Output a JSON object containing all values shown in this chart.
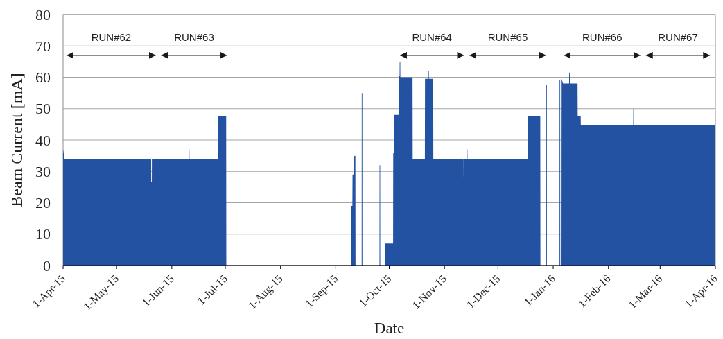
{
  "chart_data": {
    "type": "area",
    "xlabel": "Date",
    "ylabel": "Beam Current [mA]",
    "series": [
      {
        "color": "#2452a3",
        "x": [
          "2015-04-01",
          "2015-04-01T20:00",
          "2015-05-20T10:00",
          "2015-05-20T11:00",
          "2015-05-20T19:00",
          "2015-05-20T20:00",
          "2015-06-10T12:00",
          "2015-06-10T13:00",
          "2015-06-10T21:00",
          "2015-06-10T22:00",
          "2015-06-26T18:00",
          "2015-06-26T20:00",
          "2015-07-01T12:00",
          "2015-07-01T14:00",
          "2015-09-09T16:00",
          "2015-09-09T18:00",
          "2015-09-10T08:00",
          "2015-09-10T10:00",
          "2015-09-11T00:00",
          "2015-09-11T02:00",
          "2015-09-11T12:00",
          "2015-09-12T00:00",
          "2015-09-12T02:00",
          "2015-09-15T13:00",
          "2015-09-15T14:00",
          "2015-09-15T22:00",
          "2015-09-15T23:00",
          "2015-09-25T13:00",
          "2015-09-25T14:00",
          "2015-09-25T22:00",
          "2015-09-25T23:00",
          "2015-09-28T18:00",
          "2015-09-28T20:00",
          "2015-10-03T04:00",
          "2015-10-03T06:00",
          "2015-10-03T14:00",
          "2015-10-03T16:00",
          "2015-10-06T12:00",
          "2015-10-06T14:00",
          "2015-10-06T20:00",
          "2015-10-06T21:00",
          "2015-10-07T05:00",
          "2015-10-07T06:00",
          "2015-10-14T02:00",
          "2015-10-14T04:00",
          "2015-10-21T00:00",
          "2015-10-21T02:00",
          "2015-10-22T20:00",
          "2015-10-22T21:00",
          "2015-10-23T05:00",
          "2015-10-23T06:00",
          "2015-10-25T16:00",
          "2015-10-25T18:00",
          "2015-11-11T18:00",
          "2015-11-11T19:00",
          "2015-11-12T03:00",
          "2015-11-12T04:00",
          "2015-11-13T12:00",
          "2015-11-13T13:00",
          "2015-11-13T21:00",
          "2015-11-13T22:00",
          "2015-12-17T16:00",
          "2015-12-17T18:00",
          "2015-12-24T18:00",
          "2015-12-24T20:00",
          "2015-12-28T01:00",
          "2015-12-28T02:00",
          "2015-12-28T10:00",
          "2015-12-28T11:00",
          "2016-01-04T13:00",
          "2016-01-04T14:00",
          "2016-01-04T22:00",
          "2016-01-04T23:00",
          "2016-01-05T16:00",
          "2016-01-05T18:00",
          "2016-01-06T12:00",
          "2016-01-09T22:00",
          "2016-01-09T23:00",
          "2016-01-10T07:00",
          "2016-01-10T08:00",
          "2016-01-14T16:00",
          "2016-01-14T18:00",
          "2016-01-16T10:00",
          "2016-01-16T12:00",
          "2016-02-14T22:00",
          "2016-02-14T23:00",
          "2016-02-15T07:00",
          "2016-02-15T08:00",
          "2016-04-01"
        ],
        "values": [
          37,
          34,
          34,
          26.5,
          26.5,
          34,
          34,
          37,
          37,
          34,
          34,
          47.5,
          47.5,
          0,
          0,
          19,
          19,
          29,
          29,
          34,
          35,
          35,
          0,
          0,
          55,
          55,
          0,
          0,
          32,
          32,
          0,
          0,
          7,
          7,
          36,
          36,
          48,
          48,
          60.5,
          60.5,
          65,
          65,
          60,
          60,
          34,
          34,
          59.5,
          59.5,
          62,
          62,
          59.5,
          59.5,
          34,
          34,
          28,
          28,
          34,
          34,
          37,
          37,
          34,
          34,
          47.5,
          47.5,
          0,
          0,
          57.5,
          57.5,
          0,
          0,
          59,
          59,
          0,
          0,
          59.5,
          58,
          58,
          61.5,
          61.5,
          58,
          58,
          47.5,
          47.5,
          44.7,
          44.7,
          50,
          50,
          44.7,
          44.7
        ]
      },
      {
        "type": "line",
        "name": "RUN#62",
        "color": "#1a1a1a",
        "x": [
          "2015-04-03",
          "2015-05-23"
        ],
        "values": [
          67,
          67
        ]
      },
      {
        "type": "line",
        "name": "RUN#63",
        "color": "#1a1a1a",
        "x": [
          "2015-05-26",
          "2015-07-02"
        ],
        "values": [
          67,
          67
        ]
      },
      {
        "type": "line",
        "name": "RUN#64",
        "color": "#1a1a1a",
        "x": [
          "2015-10-07",
          "2015-11-12"
        ],
        "values": [
          67,
          67
        ]
      },
      {
        "type": "line",
        "name": "RUN#65",
        "color": "#1a1a1a",
        "x": [
          "2015-11-15",
          "2015-12-28"
        ],
        "values": [
          67,
          67
        ]
      },
      {
        "type": "line",
        "name": "RUN#66",
        "color": "#1a1a1a",
        "x": [
          "2016-01-07",
          "2016-02-19"
        ],
        "values": [
          67,
          67
        ]
      },
      {
        "type": "line",
        "name": "RUN#67",
        "color": "#1a1a1a",
        "x": [
          "2016-02-22",
          "2016-03-29"
        ],
        "values": [
          67,
          67
        ]
      }
    ],
    "xlim": [
      "2015-04-01",
      "2016-04-01"
    ],
    "xticks": [
      {
        "value": "2015-04-01",
        "label": "1-Apr-15"
      },
      {
        "value": "2015-05-01",
        "label": "1-May-15"
      },
      {
        "value": "2015-06-01",
        "label": "1-Jun-15"
      },
      {
        "value": "2015-07-01",
        "label": "1-Jul-15"
      },
      {
        "value": "2015-08-01",
        "label": "1-Aug-15"
      },
      {
        "value": "2015-09-01",
        "label": "1-Sep-15"
      },
      {
        "value": "2015-10-01",
        "label": "1-Oct-15"
      },
      {
        "value": "2015-11-01",
        "label": "1-Nov-15"
      },
      {
        "value": "2015-12-01",
        "label": "1-Dec-15"
      },
      {
        "value": "2016-01-01",
        "label": "1-Jan-16"
      },
      {
        "value": "2016-02-01",
        "label": "1-Feb-16"
      },
      {
        "value": "2016-03-01",
        "label": "1-Mar-16"
      },
      {
        "value": "2016-04-01",
        "label": "1-Apr-16"
      }
    ],
    "ylim": [
      0,
      80
    ],
    "yticks": [
      0,
      10,
      20,
      30,
      40,
      50,
      60,
      70,
      80
    ],
    "grid": "y"
  }
}
